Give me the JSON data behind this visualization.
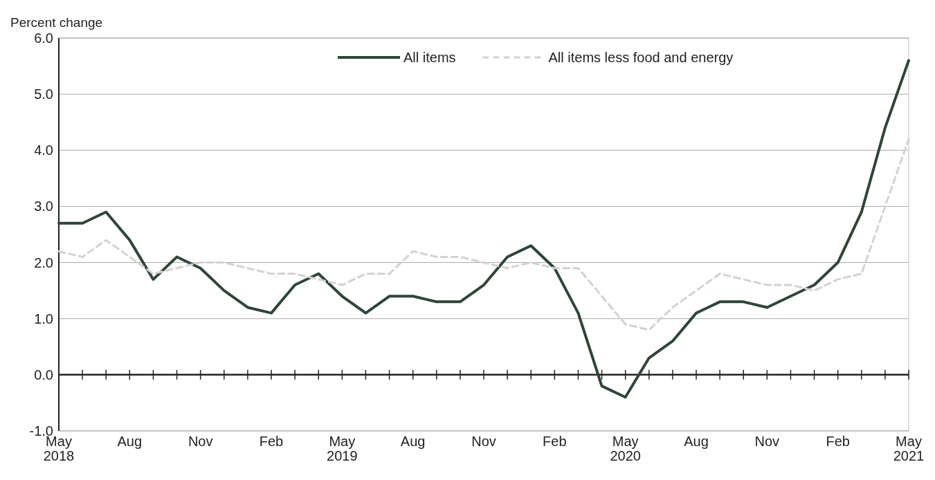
{
  "chart_data": {
    "type": "line",
    "ylabel": "Percent change",
    "categories": [
      "May\n2018",
      null,
      null,
      "Aug",
      null,
      null,
      "Nov",
      null,
      null,
      "Feb",
      null,
      null,
      "May\n2019",
      null,
      null,
      "Aug",
      null,
      null,
      "Nov",
      null,
      null,
      "Feb",
      null,
      null,
      "May\n2020",
      null,
      null,
      "Aug",
      null,
      null,
      "Nov",
      null,
      null,
      "Feb",
      null,
      null,
      "May\n2021"
    ],
    "series": [
      {
        "name": "All items",
        "color": "#2f4538",
        "line_style": "solid",
        "values": [
          2.7,
          2.7,
          2.9,
          2.4,
          1.7,
          2.1,
          1.9,
          1.5,
          1.2,
          1.1,
          1.6,
          1.8,
          1.4,
          1.1,
          1.4,
          1.4,
          1.3,
          1.3,
          1.6,
          2.1,
          2.3,
          1.9,
          1.1,
          -0.2,
          -0.4,
          0.3,
          0.6,
          1.1,
          1.3,
          1.3,
          1.2,
          1.4,
          1.6,
          2.0,
          2.9,
          4.4,
          5.6
        ]
      },
      {
        "name": "All items less food and energy",
        "color": "#d2d2d2",
        "line_style": "dashed",
        "values": [
          2.2,
          2.1,
          2.4,
          2.1,
          1.8,
          1.9,
          2.0,
          2.0,
          1.9,
          1.8,
          1.8,
          1.7,
          1.6,
          1.8,
          1.8,
          2.2,
          2.1,
          2.1,
          2.0,
          1.9,
          2.0,
          1.9,
          1.9,
          1.4,
          0.9,
          0.8,
          1.2,
          1.5,
          1.8,
          1.7,
          1.6,
          1.6,
          1.5,
          1.7,
          1.8,
          3.0,
          4.2
        ]
      }
    ],
    "ylim": [
      -1,
      6
    ],
    "yticks": [
      {
        "value": -1,
        "label": "-1.0"
      },
      {
        "value": 0,
        "label": "0.0"
      },
      {
        "value": 1,
        "label": "1.0"
      },
      {
        "value": 2,
        "label": "2.0"
      },
      {
        "value": 3,
        "label": "3.0"
      },
      {
        "value": 4,
        "label": "4.0"
      },
      {
        "value": 5,
        "label": "5.0"
      },
      {
        "value": 6,
        "label": "6.0"
      }
    ],
    "grid": "y",
    "legend": "top right"
  }
}
